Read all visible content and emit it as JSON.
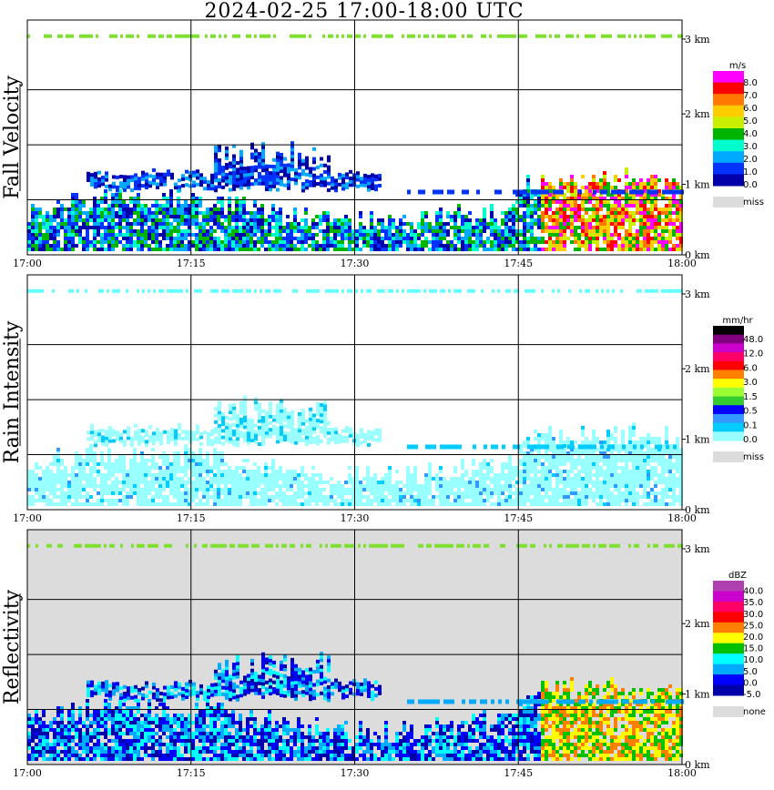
{
  "title": "2024-02-25  17:00-18:00 UTC",
  "chart_data": [
    {
      "type": "heatmap",
      "ylabel": "Fall Velocity",
      "x_ticks": [
        "17:00",
        "17:15",
        "17:30",
        "17:45",
        "18:00"
      ],
      "y_ticks": [
        "0 km",
        "1 km",
        "2 km",
        "3 km"
      ],
      "ylim_km": [
        0,
        3.2
      ],
      "grid": true,
      "background": "#ffffff",
      "colorbar": {
        "unit": "m/s",
        "levels": [
          "8.0",
          "7.0",
          "6.0",
          "5.0",
          "4.0",
          "3.0",
          "2.0",
          "1.0",
          "0.0"
        ],
        "colors": [
          "#ff00ff",
          "#ff0000",
          "#ff7800",
          "#ffcc00",
          "#c8f000",
          "#00b400",
          "#00ffcc",
          "#00aaff",
          "#0033ff",
          "#0000aa"
        ],
        "miss_label": "miss",
        "miss_color": "#dcdcdc"
      }
    },
    {
      "type": "heatmap",
      "ylabel": "Rain Intensity",
      "x_ticks": [
        "17:00",
        "17:15",
        "17:30",
        "17:45",
        "18:00"
      ],
      "y_ticks": [
        "0 km",
        "1 km",
        "2 km",
        "3 km"
      ],
      "ylim_km": [
        0,
        3.2
      ],
      "grid": true,
      "background": "#ffffff",
      "colorbar": {
        "unit": "mm/hr",
        "levels": [
          "48.0",
          "12.0",
          "6.0",
          "3.0",
          "1.5",
          "0.5",
          "0.1",
          "0.0"
        ],
        "colors": [
          "#000000",
          "#800080",
          "#cc00cc",
          "#ff0066",
          "#ff0000",
          "#ff8000",
          "#ffff00",
          "#99ff33",
          "#33cc33",
          "#0000ff",
          "#3399ff",
          "#00ccff",
          "#99ffff"
        ],
        "miss_label": "miss",
        "miss_color": "#dcdcdc"
      }
    },
    {
      "type": "heatmap",
      "ylabel": "Reflectivity",
      "x_ticks": [
        "17:00",
        "17:15",
        "17:30",
        "17:45",
        "18:00"
      ],
      "y_ticks": [
        "0 km",
        "1 km",
        "2 km",
        "3 km"
      ],
      "ylim_km": [
        0,
        3.2
      ],
      "grid": true,
      "background": "#dcdcdc",
      "colorbar": {
        "unit": "dBZ",
        "levels": [
          "40.0",
          "35.0",
          "30.0",
          "25.0",
          "20.0",
          "15.0",
          "10.0",
          "5.0",
          "0.0",
          "-5.0"
        ],
        "colors": [
          "#b040b0",
          "#cc00cc",
          "#ff0066",
          "#ff0000",
          "#ff8000",
          "#ffff00",
          "#00c000",
          "#00ffff",
          "#00aaff",
          "#0000ff",
          "#0000aa"
        ],
        "miss_label": "none",
        "miss_color": "#dcdcdc"
      }
    }
  ]
}
